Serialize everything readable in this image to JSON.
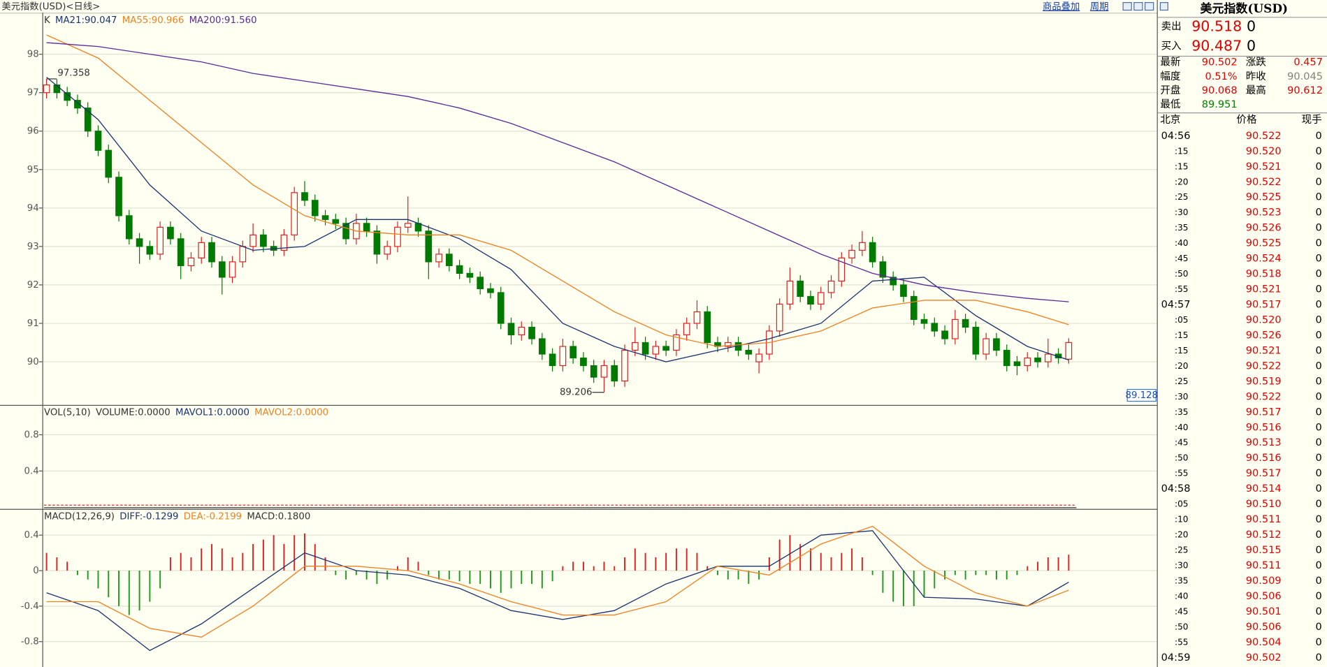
{
  "toolbar": {
    "title": "美元指数(USD)<日线>",
    "buttons": [
      "商品叠加",
      "周期"
    ]
  },
  "chart_data": [
    {
      "type": "candlestick",
      "label": "K",
      "ylim": [
        88.9,
        99.08
      ],
      "yticks": [
        90,
        91,
        92,
        93,
        94,
        95,
        96,
        97,
        98
      ],
      "grid": true,
      "up_color": "#e02020",
      "down_color": "#007a00",
      "ohlc": [
        [
          97.0,
          97.358,
          96.85,
          97.2
        ],
        [
          97.2,
          97.35,
          96.85,
          97.0
        ],
        [
          97.0,
          97.15,
          96.65,
          96.8
        ],
        [
          96.8,
          96.95,
          96.45,
          96.6
        ],
        [
          96.6,
          96.75,
          95.85,
          96.0
        ],
        [
          96.0,
          96.15,
          95.35,
          95.5
        ],
        [
          95.5,
          95.65,
          94.65,
          94.8
        ],
        [
          94.8,
          94.95,
          93.65,
          93.8
        ],
        [
          93.8,
          93.95,
          93.05,
          93.2
        ],
        [
          93.2,
          93.35,
          92.55,
          93.0
        ],
        [
          93.0,
          93.15,
          92.65,
          92.8
        ],
        [
          92.8,
          93.65,
          92.65,
          93.5
        ],
        [
          93.5,
          93.65,
          93.05,
          93.2
        ],
        [
          93.2,
          93.35,
          92.15,
          92.5
        ],
        [
          92.5,
          92.85,
          92.35,
          92.7
        ],
        [
          92.7,
          93.25,
          92.55,
          93.1
        ],
        [
          93.1,
          93.25,
          92.45,
          92.6
        ],
        [
          92.6,
          92.75,
          91.75,
          92.2
        ],
        [
          92.2,
          92.75,
          92.05,
          92.6
        ],
        [
          92.6,
          93.15,
          92.45,
          93.0
        ],
        [
          93.0,
          93.6,
          92.85,
          93.3
        ],
        [
          93.3,
          93.45,
          92.85,
          93.0
        ],
        [
          93.0,
          93.15,
          92.75,
          92.9
        ],
        [
          92.9,
          93.45,
          92.75,
          93.3
        ],
        [
          93.3,
          94.55,
          93.15,
          94.4
        ],
        [
          94.4,
          94.7,
          94.05,
          94.2
        ],
        [
          94.2,
          94.35,
          93.65,
          93.8
        ],
        [
          93.8,
          93.95,
          93.55,
          93.7
        ],
        [
          93.7,
          93.85,
          93.45,
          93.6
        ],
        [
          93.6,
          93.75,
          93.05,
          93.2
        ],
        [
          93.2,
          93.85,
          93.05,
          93.6
        ],
        [
          93.6,
          93.75,
          93.25,
          93.4
        ],
        [
          93.4,
          93.55,
          92.55,
          92.8
        ],
        [
          92.8,
          93.15,
          92.65,
          93.0
        ],
        [
          93.0,
          93.65,
          92.85,
          93.5
        ],
        [
          93.5,
          94.3,
          93.35,
          93.6
        ],
        [
          93.6,
          93.75,
          93.25,
          93.4
        ],
        [
          93.4,
          93.55,
          92.15,
          92.6
        ],
        [
          92.6,
          92.95,
          92.45,
          92.8
        ],
        [
          92.8,
          92.95,
          92.35,
          92.5
        ],
        [
          92.5,
          92.65,
          92.15,
          92.3
        ],
        [
          92.3,
          92.45,
          92.05,
          92.2
        ],
        [
          92.2,
          92.35,
          91.75,
          91.9
        ],
        [
          91.9,
          92.05,
          91.65,
          91.8
        ],
        [
          91.8,
          91.95,
          90.85,
          91.0
        ],
        [
          91.0,
          91.15,
          90.45,
          90.7
        ],
        [
          90.7,
          91.05,
          90.55,
          90.9
        ],
        [
          90.9,
          91.05,
          90.45,
          90.6
        ],
        [
          90.6,
          90.75,
          90.05,
          90.2
        ],
        [
          90.2,
          90.35,
          89.75,
          89.9
        ],
        [
          89.9,
          90.6,
          89.75,
          90.4
        ],
        [
          90.4,
          90.55,
          89.95,
          90.1
        ],
        [
          90.1,
          90.25,
          89.75,
          89.9
        ],
        [
          89.9,
          90.05,
          89.45,
          89.6
        ],
        [
          89.6,
          90.05,
          89.206,
          89.9
        ],
        [
          89.9,
          90.05,
          89.35,
          89.5
        ],
        [
          89.5,
          90.45,
          89.35,
          90.3
        ],
        [
          90.3,
          90.9,
          90.15,
          90.5
        ],
        [
          90.5,
          90.65,
          90.05,
          90.2
        ],
        [
          90.2,
          90.55,
          90.05,
          90.4
        ],
        [
          90.4,
          90.55,
          90.15,
          90.3
        ],
        [
          90.3,
          90.85,
          90.15,
          90.7
        ],
        [
          90.7,
          91.15,
          90.55,
          91.0
        ],
        [
          91.0,
          91.6,
          90.85,
          91.3
        ],
        [
          91.3,
          91.45,
          90.35,
          90.5
        ],
        [
          90.5,
          90.65,
          90.25,
          90.4
        ],
        [
          90.4,
          90.65,
          90.25,
          90.5
        ],
        [
          90.5,
          90.65,
          90.15,
          90.3
        ],
        [
          90.3,
          90.45,
          90.05,
          90.2
        ],
        [
          90.0,
          90.35,
          89.7,
          90.2
        ],
        [
          90.2,
          90.95,
          90.05,
          90.8
        ],
        [
          90.8,
          91.65,
          90.65,
          91.5
        ],
        [
          91.5,
          92.45,
          91.35,
          92.1
        ],
        [
          92.1,
          92.25,
          91.55,
          91.7
        ],
        [
          91.7,
          91.85,
          91.35,
          91.5
        ],
        [
          91.5,
          91.95,
          91.35,
          91.8
        ],
        [
          91.8,
          92.25,
          91.65,
          92.1
        ],
        [
          92.1,
          92.85,
          91.95,
          92.7
        ],
        [
          92.7,
          93.05,
          92.55,
          92.9
        ],
        [
          92.9,
          93.4,
          92.75,
          93.1
        ],
        [
          93.1,
          93.25,
          92.45,
          92.6
        ],
        [
          92.6,
          92.75,
          92.05,
          92.2
        ],
        [
          92.2,
          92.35,
          91.85,
          92.0
        ],
        [
          92.0,
          92.15,
          91.55,
          91.7
        ],
        [
          91.7,
          91.85,
          90.95,
          91.1
        ],
        [
          91.1,
          91.25,
          90.85,
          91.0
        ],
        [
          91.0,
          91.15,
          90.65,
          90.8
        ],
        [
          90.8,
          90.95,
          90.45,
          90.6
        ],
        [
          90.6,
          91.35,
          90.45,
          91.1
        ],
        [
          91.1,
          91.25,
          90.75,
          90.9
        ],
        [
          90.9,
          91.05,
          90.05,
          90.2
        ],
        [
          90.2,
          90.75,
          90.05,
          90.6
        ],
        [
          90.6,
          90.75,
          90.15,
          90.3
        ],
        [
          90.3,
          90.45,
          89.75,
          89.9
        ],
        [
          90.0,
          90.15,
          89.65,
          89.9
        ],
        [
          89.9,
          90.25,
          89.75,
          90.1
        ],
        [
          90.1,
          90.25,
          89.85,
          90.0
        ],
        [
          90.0,
          90.6,
          89.85,
          90.2
        ],
        [
          90.2,
          90.35,
          89.95,
          90.1
        ],
        [
          90.068,
          90.612,
          89.951,
          90.502
        ]
      ],
      "lines": [
        {
          "name": "MA21:90.047",
          "color": "#1a3370",
          "x": [
            0,
            5,
            10,
            15,
            20,
            25,
            30,
            35,
            40,
            45,
            50,
            55,
            60,
            65,
            70,
            75,
            80,
            85,
            90,
            95,
            99
          ],
          "values": [
            97.4,
            96.3,
            94.6,
            93.4,
            92.9,
            93.0,
            93.7,
            93.7,
            93.2,
            92.4,
            91.0,
            90.4,
            90.0,
            90.3,
            90.6,
            91.0,
            92.1,
            92.2,
            91.2,
            90.4,
            90.047
          ]
        },
        {
          "name": "MA55:90.966",
          "color": "#f08020",
          "x": [
            0,
            5,
            10,
            15,
            20,
            25,
            30,
            35,
            40,
            45,
            50,
            55,
            60,
            65,
            70,
            75,
            80,
            85,
            90,
            95,
            99
          ],
          "values": [
            98.5,
            97.9,
            96.8,
            95.7,
            94.6,
            93.8,
            93.4,
            93.3,
            93.3,
            92.9,
            92.1,
            91.3,
            90.7,
            90.4,
            90.5,
            90.8,
            91.4,
            91.6,
            91.6,
            91.3,
            90.966
          ]
        },
        {
          "name": "MA200:91.560",
          "color": "#5a2a9a",
          "x": [
            0,
            5,
            10,
            15,
            20,
            25,
            30,
            35,
            40,
            45,
            50,
            55,
            60,
            65,
            70,
            75,
            80,
            85,
            90,
            95,
            99
          ],
          "values": [
            98.3,
            98.2,
            98.0,
            97.8,
            97.5,
            97.3,
            97.1,
            96.9,
            96.6,
            96.2,
            95.7,
            95.2,
            94.6,
            94.0,
            93.4,
            92.8,
            92.3,
            92.0,
            91.8,
            91.65,
            91.56
          ]
        }
      ],
      "price_marker": 89.128
    },
    {
      "type": "volume",
      "label": "VOL(5,10)",
      "series": [
        {
          "name": "VOLUME:0.0000",
          "color": "#333333"
        },
        {
          "name": "MAVOL1:0.0000",
          "color": "#1a3370"
        },
        {
          "name": "MAVOL2:0.0000",
          "color": "#f08020"
        }
      ],
      "ylim": [
        0,
        1.12
      ],
      "yticks": [
        0.4,
        0.8
      ],
      "grid": true
    },
    {
      "type": "macd",
      "label": "MACD(12,26,9)",
      "ylim": [
        -1.086,
        0.686
      ],
      "yticks": [
        -0.8,
        -0.4,
        0,
        0.4
      ],
      "grid": true,
      "histogram": {
        "name": "MACD:0.1800",
        "up_color": "#e02020",
        "down_color": "#1f9a1f",
        "values": [
          0.2,
          0.15,
          0.1,
          -0.05,
          -0.1,
          -0.2,
          -0.3,
          -0.4,
          -0.5,
          -0.45,
          -0.35,
          -0.2,
          0.15,
          0.2,
          0.15,
          0.25,
          0.3,
          0.25,
          0.15,
          0.2,
          0.3,
          0.35,
          0.4,
          0.3,
          0.4,
          0.42,
          0.3,
          0.15,
          -0.05,
          -0.1,
          -0.05,
          -0.1,
          -0.15,
          -0.1,
          0.05,
          0.15,
          0.1,
          -0.05,
          -0.1,
          -0.1,
          -0.12,
          -0.15,
          -0.15,
          -0.2,
          -0.25,
          -0.2,
          -0.15,
          -0.15,
          -0.2,
          -0.12,
          0.05,
          0.1,
          0.1,
          0.05,
          0.1,
          0.05,
          0.15,
          0.25,
          0.2,
          0.15,
          0.2,
          0.25,
          0.25,
          0.2,
          0.05,
          -0.05,
          -0.1,
          -0.1,
          -0.15,
          -0.1,
          0.15,
          0.35,
          0.4,
          0.3,
          0.25,
          0.2,
          0.15,
          0.2,
          0.25,
          0.15,
          -0.05,
          -0.25,
          -0.35,
          -0.4,
          -0.4,
          -0.3,
          -0.2,
          -0.1,
          -0.05,
          -0.1,
          -0.05,
          -0.05,
          -0.1,
          -0.1,
          -0.05,
          0.05,
          0.1,
          0.15,
          0.15,
          0.18
        ]
      },
      "lines": [
        {
          "name": "DIFF:-0.1299",
          "color": "#1a3370",
          "x": [
            0,
            5,
            10,
            15,
            20,
            25,
            30,
            35,
            40,
            45,
            50,
            55,
            60,
            65,
            70,
            75,
            80,
            85,
            90,
            95,
            99
          ],
          "values": [
            -0.25,
            -0.45,
            -0.9,
            -0.6,
            -0.2,
            0.2,
            0.0,
            -0.05,
            -0.2,
            -0.45,
            -0.55,
            -0.45,
            -0.15,
            0.05,
            0.05,
            0.4,
            0.45,
            -0.3,
            -0.32,
            -0.4,
            -0.1299
          ]
        },
        {
          "name": "DEA:-0.2199",
          "color": "#f08020",
          "x": [
            0,
            5,
            10,
            15,
            20,
            25,
            30,
            35,
            40,
            45,
            50,
            55,
            60,
            65,
            70,
            75,
            80,
            85,
            90,
            95,
            99
          ],
          "values": [
            -0.35,
            -0.35,
            -0.65,
            -0.75,
            -0.4,
            0.05,
            0.05,
            0.0,
            -0.15,
            -0.35,
            -0.5,
            -0.5,
            -0.35,
            0.05,
            -0.05,
            0.3,
            0.5,
            0.05,
            -0.25,
            -0.4,
            -0.2199
          ]
        }
      ]
    }
  ],
  "quote": {
    "title": "美元指数(USD)",
    "bid_ask": [
      {
        "label": "卖出",
        "price": "90.518",
        "volume": "0"
      },
      {
        "label": "买入",
        "price": "90.487",
        "volume": "0"
      }
    ],
    "stats": [
      [
        {
          "label": "最新",
          "value": "90.502",
          "color": "#e00000"
        },
        {
          "label": "涨跌",
          "value": "0.457",
          "color": "#e00000"
        }
      ],
      [
        {
          "label": "幅度",
          "value": "0.51%",
          "color": "#e00000"
        },
        {
          "label": "昨收",
          "value": "90.045",
          "color": "#808080"
        }
      ],
      [
        {
          "label": "开盘",
          "value": "90.068",
          "color": "#e00000"
        },
        {
          "label": "最高",
          "value": "90.612",
          "color": "#e00000"
        }
      ],
      [
        {
          "label": "最低",
          "value": "89.951",
          "color": "#008000"
        }
      ]
    ],
    "ticks_header": [
      "北京",
      "价格",
      "现手"
    ],
    "ticks": [
      [
        "04:56",
        "90.522",
        "0"
      ],
      [
        ":15",
        "90.520",
        "0"
      ],
      [
        ":15",
        "90.521",
        "0"
      ],
      [
        ":20",
        "90.522",
        "0"
      ],
      [
        ":25",
        "90.525",
        "0"
      ],
      [
        ":30",
        "90.523",
        "0"
      ],
      [
        ":35",
        "90.526",
        "0"
      ],
      [
        ":40",
        "90.525",
        "0"
      ],
      [
        ":45",
        "90.524",
        "0"
      ],
      [
        ":50",
        "90.518",
        "0"
      ],
      [
        ":55",
        "90.521",
        "0"
      ],
      [
        "04:57",
        "90.517",
        "0"
      ],
      [
        ":05",
        "90.520",
        "0"
      ],
      [
        ":15",
        "90.526",
        "0"
      ],
      [
        ":15",
        "90.521",
        "0"
      ],
      [
        ":20",
        "90.522",
        "0"
      ],
      [
        ":25",
        "90.519",
        "0"
      ],
      [
        ":30",
        "90.522",
        "0"
      ],
      [
        ":35",
        "90.517",
        "0"
      ],
      [
        ":40",
        "90.516",
        "0"
      ],
      [
        ":45",
        "90.513",
        "0"
      ],
      [
        ":50",
        "90.516",
        "0"
      ],
      [
        ":55",
        "90.517",
        "0"
      ],
      [
        "04:58",
        "90.514",
        "0"
      ],
      [
        ":05",
        "90.510",
        "0"
      ],
      [
        ":10",
        "90.511",
        "0"
      ],
      [
        ":20",
        "90.512",
        "0"
      ],
      [
        ":25",
        "90.515",
        "0"
      ],
      [
        ":30",
        "90.511",
        "0"
      ],
      [
        ":35",
        "90.509",
        "0"
      ],
      [
        ":40",
        "90.506",
        "0"
      ],
      [
        ":45",
        "90.501",
        "0"
      ],
      [
        ":50",
        "90.506",
        "0"
      ],
      [
        ":55",
        "90.504",
        "0"
      ],
      [
        "04:59",
        "90.502",
        "0"
      ]
    ]
  }
}
